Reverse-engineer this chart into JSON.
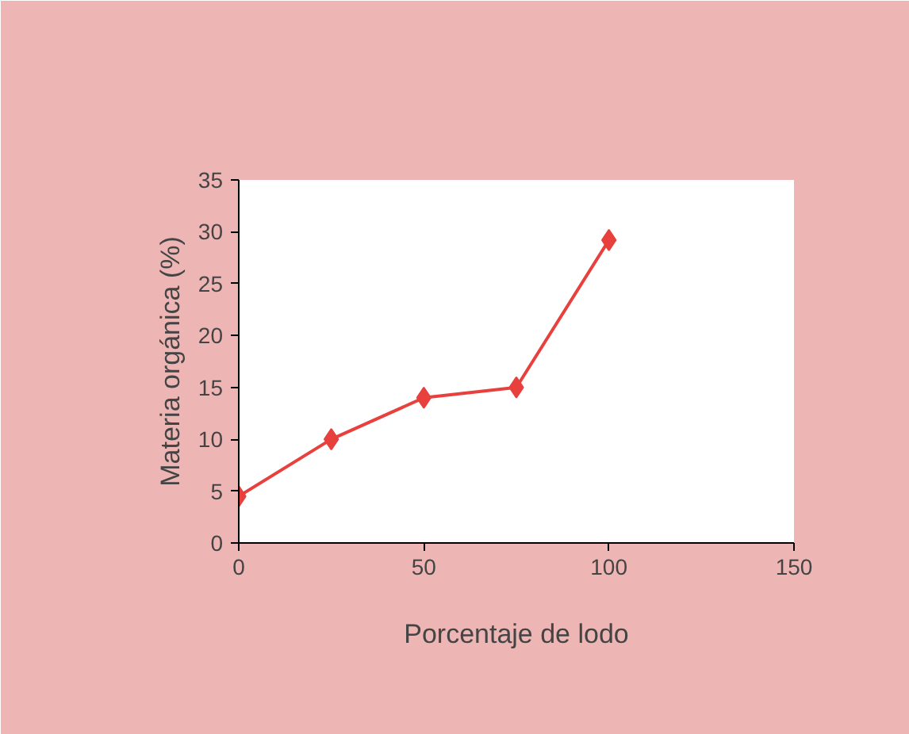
{
  "chart_data": {
    "type": "line",
    "xlabel": "Porcentaje de lodo",
    "ylabel": "Materia orgánica (%)",
    "x": [
      0,
      25,
      50,
      75,
      100
    ],
    "series": [
      {
        "color": "#e8403c",
        "values": [
          4.5,
          10,
          14,
          15,
          29.2
        ]
      }
    ],
    "xlim": [
      0,
      150
    ],
    "xticks": [
      0,
      50,
      100,
      150
    ],
    "ylim": [
      0,
      35
    ],
    "yticks": [
      0,
      5,
      10,
      15,
      20,
      25,
      30,
      35
    ],
    "grid": false,
    "marker": "diamond",
    "line_style": "solid"
  }
}
